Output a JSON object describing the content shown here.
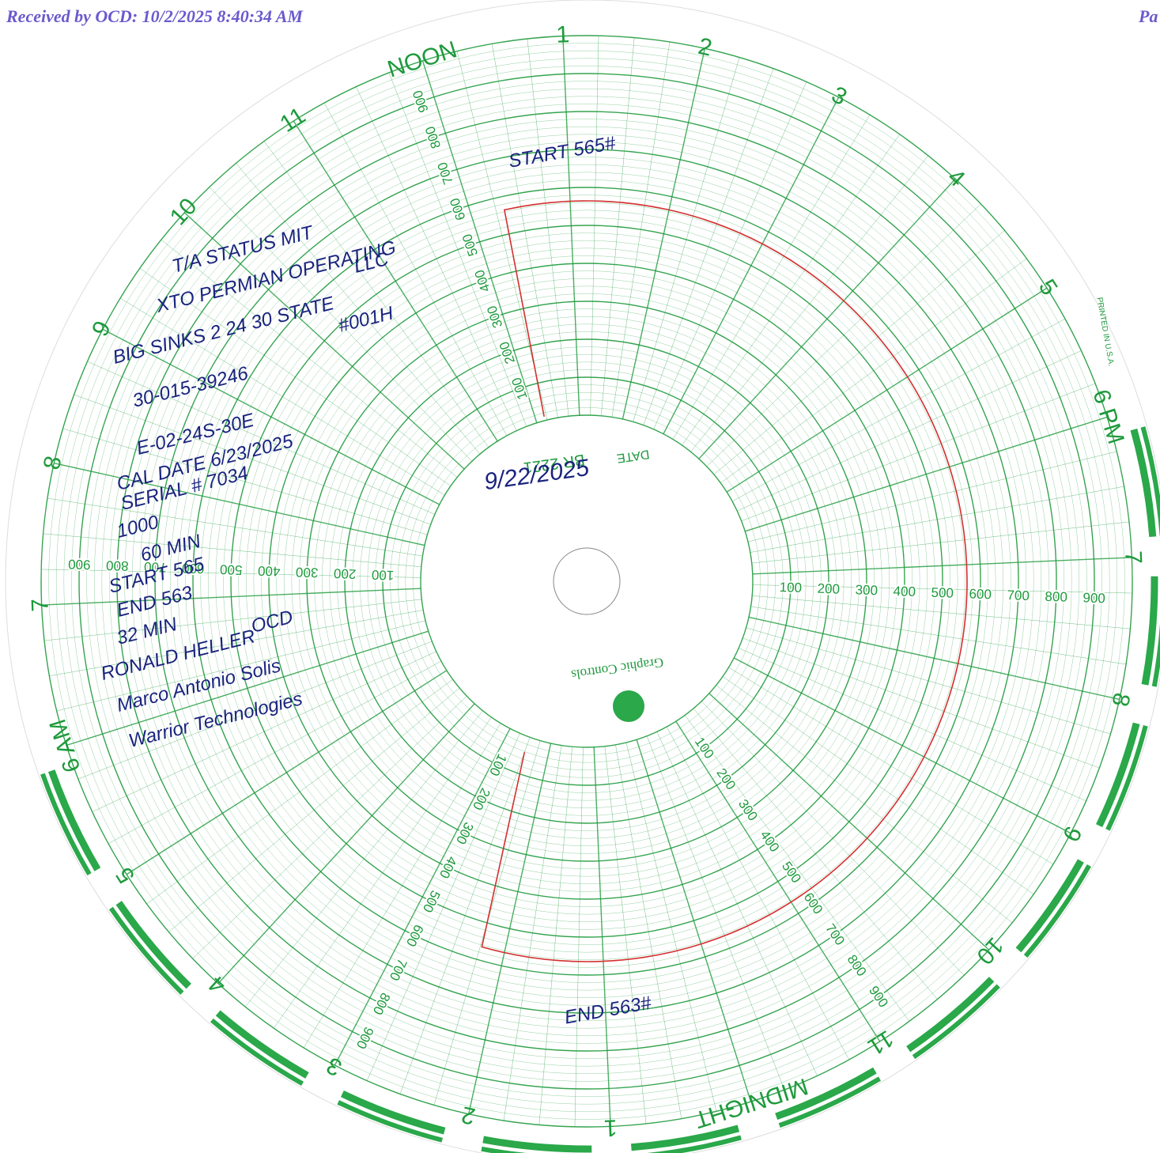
{
  "header": {
    "received": "Received by OCD: 10/2/2025 8:40:34 AM",
    "page": "Pa"
  },
  "chart": {
    "hours": [
      "NOON",
      "1",
      "2",
      "3",
      "4",
      "5",
      "6 PM",
      "7",
      "8",
      "9",
      "10",
      "11",
      "MIDNIGHT",
      "1",
      "2",
      "3",
      "4",
      "5",
      "6 AM",
      "7",
      "8",
      "9",
      "10",
      "11"
    ],
    "scale": [
      "100",
      "200",
      "300",
      "400",
      "500",
      "600",
      "700",
      "800",
      "900"
    ],
    "date_label": "DATE",
    "model": "BR 2221",
    "brand": "Graphic Controls",
    "printed": "PRINTED IN U.S.A.",
    "date": "9/22/2025"
  },
  "notes": {
    "start_top": "START 565#",
    "end_bottom": "END 563#",
    "lines": [
      "T/A STATUS MIT",
      "XTO PERMIAN OPERATING",
      "LLC",
      "BIG SINKS 2 24 30 STATE",
      "#001H",
      "30-015-39246",
      "E-02-24S-30E",
      "CAL DATE 6/23/2025",
      "SERIAL # 7034",
      "1000",
      "60 MIN",
      "START 565",
      "END 563",
      "32 MIN",
      "OCD",
      "RONALD HELLER",
      "Marco Antonio Solis",
      "Warrior Technologies"
    ]
  }
}
